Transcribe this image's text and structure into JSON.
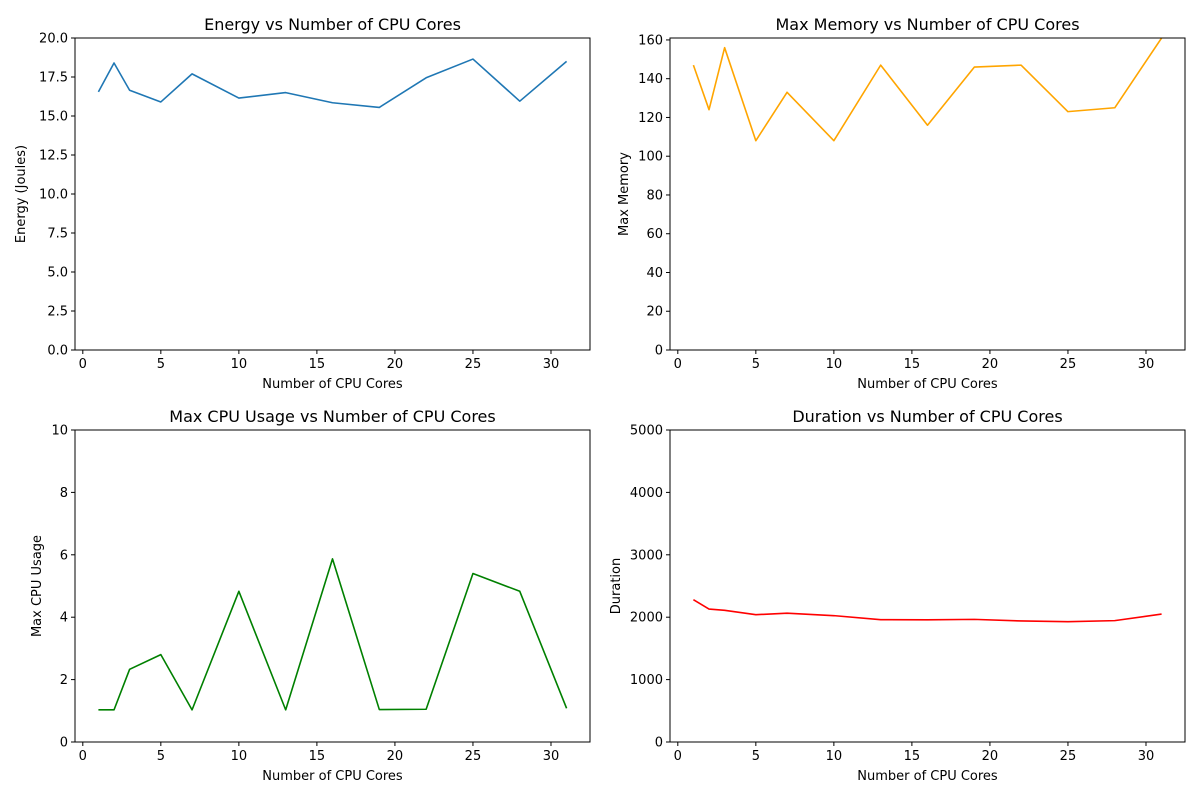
{
  "chart_data": [
    {
      "type": "line",
      "title": "Energy vs Number of CPU Cores",
      "xlabel": "Number of CPU Cores",
      "ylabel": "Energy (Joules)",
      "xlim": [
        -0.5,
        32.5
      ],
      "ylim": [
        0,
        20
      ],
      "xticks": [
        0,
        5,
        10,
        15,
        20,
        25,
        30
      ],
      "yticks": [
        0,
        2.5,
        5,
        7.5,
        10,
        12.5,
        15,
        17.5,
        20
      ],
      "ytick_labels": [
        "0.0",
        "2.5",
        "5.0",
        "7.5",
        "10.0",
        "12.5",
        "15.0",
        "17.5",
        "20.0"
      ],
      "grid": false,
      "color": "#1f77b4",
      "x": [
        1,
        2,
        3,
        5,
        7,
        10,
        13,
        16,
        19,
        22,
        25,
        28,
        31
      ],
      "y": [
        16.55,
        18.4,
        16.65,
        15.9,
        17.7,
        16.15,
        16.5,
        15.85,
        15.55,
        17.45,
        18.65,
        15.95,
        18.5
      ]
    },
    {
      "type": "line",
      "title": "Max Memory vs Number of CPU Cores",
      "xlabel": "Number of CPU Cores",
      "ylabel": "Max Memory",
      "xlim": [
        -0.5,
        32.5
      ],
      "ylim": [
        0,
        161
      ],
      "xticks": [
        0,
        5,
        10,
        15,
        20,
        25,
        30
      ],
      "yticks": [
        0,
        20,
        40,
        60,
        80,
        100,
        120,
        140,
        160
      ],
      "ytick_labels": [
        "0",
        "20",
        "40",
        "60",
        "80",
        "100",
        "120",
        "140",
        "160"
      ],
      "grid": false,
      "color": "#ffa500",
      "x": [
        1,
        2,
        3,
        5,
        7,
        10,
        13,
        16,
        19,
        22,
        25,
        28,
        31
      ],
      "y": [
        147,
        124,
        156,
        108,
        133,
        108,
        147,
        116,
        146,
        147,
        123,
        125,
        161
      ]
    },
    {
      "type": "line",
      "title": "Max CPU Usage vs Number of CPU Cores",
      "xlabel": "Number of CPU Cores",
      "ylabel": "Max CPU Usage",
      "xlim": [
        -0.5,
        32.5
      ],
      "ylim": [
        0,
        10
      ],
      "xticks": [
        0,
        5,
        10,
        15,
        20,
        25,
        30
      ],
      "yticks": [
        0,
        2,
        4,
        6,
        8,
        10
      ],
      "ytick_labels": [
        "0",
        "2",
        "4",
        "6",
        "8",
        "10"
      ],
      "grid": false,
      "color": "#008000",
      "x": [
        1,
        2,
        3,
        5,
        7,
        10,
        13,
        16,
        19,
        22,
        25,
        28,
        31
      ],
      "y": [
        1.03,
        1.03,
        2.33,
        2.8,
        1.03,
        4.83,
        1.03,
        5.87,
        1.04,
        1.05,
        5.4,
        4.83,
        1.08
      ]
    },
    {
      "type": "line",
      "title": "Duration vs Number of CPU Cores",
      "xlabel": "Number of CPU Cores",
      "ylabel": "Duration",
      "xlim": [
        -0.5,
        32.5
      ],
      "ylim": [
        0,
        5000
      ],
      "xticks": [
        0,
        5,
        10,
        15,
        20,
        25,
        30
      ],
      "yticks": [
        0,
        1000,
        2000,
        3000,
        4000,
        5000
      ],
      "ytick_labels": [
        "0",
        "1000",
        "2000",
        "3000",
        "4000",
        "5000"
      ],
      "grid": false,
      "color": "#ff0000",
      "x": [
        1,
        2,
        3,
        5,
        7,
        10,
        13,
        16,
        19,
        22,
        25,
        28,
        31
      ],
      "y": [
        2280,
        2130,
        2110,
        2040,
        2065,
        2025,
        1960,
        1958,
        1965,
        1940,
        1928,
        1945,
        2050
      ]
    }
  ]
}
